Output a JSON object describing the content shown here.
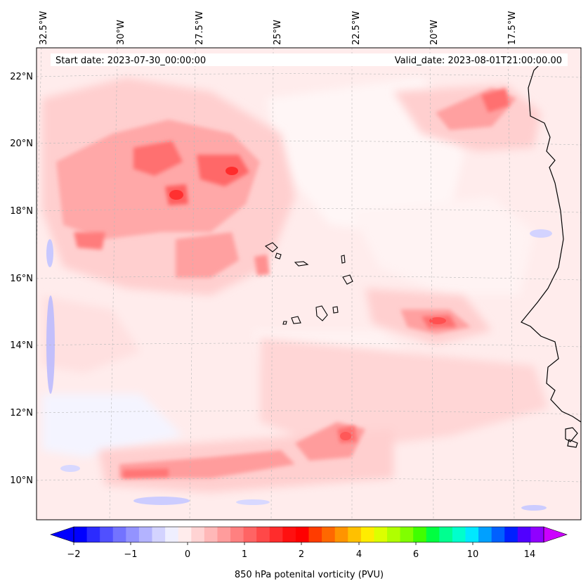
{
  "map": {
    "start_label": "Start date: 2023-07-30_00:00:00",
    "valid_label": "Valid_date: 2023-08-01T21:00:00.00",
    "lon_labels": [
      "32.5°W",
      "30°W",
      "27.5°W",
      "25°W",
      "22.5°W",
      "20°W",
      "17.5°W"
    ],
    "lat_labels": [
      "22°N",
      "20°N",
      "18°N",
      "16°N",
      "14°N",
      "12°N",
      "10°N"
    ],
    "lon_values": [
      -32.5,
      -30,
      -27.5,
      -25,
      -22.5,
      -20,
      -17.5
    ],
    "lat_values": [
      22,
      20,
      18,
      16,
      14,
      12,
      10
    ],
    "lon_range": [
      -32.7,
      -15.0
    ],
    "lat_range": [
      8.9,
      22.8
    ]
  },
  "colorbar": {
    "title": "850 hPa potenital vorticity (PVU)",
    "tick_labels": [
      "−2",
      "−1",
      "0",
      "1",
      "2",
      "4",
      "6",
      "10",
      "14"
    ],
    "colors": [
      "#0000ff",
      "#2b2bff",
      "#5050ff",
      "#7373ff",
      "#9393ff",
      "#b3b3ff",
      "#d3d3ff",
      "#efefff",
      "#ffecec",
      "#ffd3d3",
      "#ffb8b8",
      "#ff9c9c",
      "#ff8080",
      "#ff6464",
      "#ff4848",
      "#ff2c2c",
      "#ff1010",
      "#ff0000",
      "#ff3c00",
      "#ff6800",
      "#ff9400",
      "#ffc000",
      "#ffec00",
      "#dcff00",
      "#b0ff00",
      "#80ff00",
      "#40ff00",
      "#00ff40",
      "#00ff90",
      "#00ffcc",
      "#00e8ff",
      "#00a0ff",
      "#0060ff",
      "#0020ff",
      "#5000ff",
      "#9000ff"
    ],
    "extend_low_color": "#0000ff",
    "extend_high_color": "#cc00ff"
  }
}
